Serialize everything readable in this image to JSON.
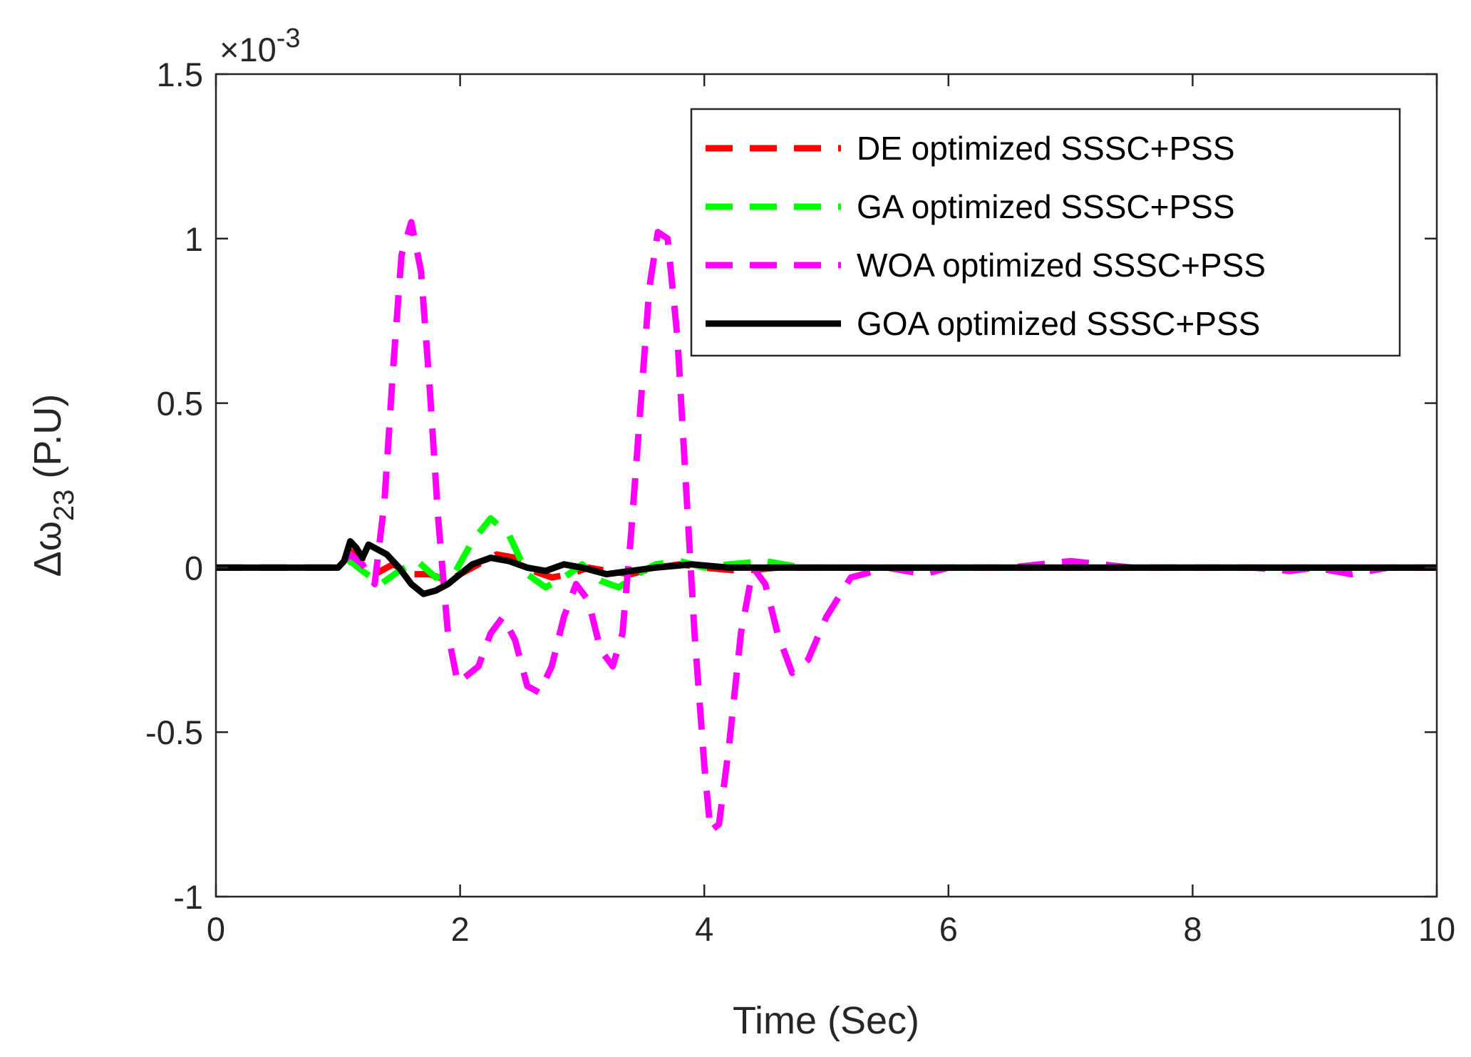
{
  "chart_data": {
    "type": "line",
    "xlabel": "Time (Sec)",
    "ylabel_prefix": "Δω",
    "ylabel_subscript": "23",
    "ylabel_suffix": " (P.U)",
    "exponent_times": "×10",
    "exponent_power": "-3",
    "xlim": [
      0,
      10
    ],
    "ylim": [
      -1,
      1.5
    ],
    "xticks": [
      0,
      2,
      4,
      6,
      8,
      10
    ],
    "yticks": [
      -1,
      -0.5,
      0,
      0.5,
      1,
      1.5
    ],
    "xtick_labels": [
      "0",
      "2",
      "4",
      "6",
      "8",
      "10"
    ],
    "ytick_labels": [
      "-1",
      "-0.5",
      "0",
      "0.5",
      "1",
      "1.5"
    ],
    "grid": false,
    "legend_position": "top-right",
    "series": [
      {
        "name": "DE optimized SSSC+PSS",
        "color": "#ff0000",
        "style": "dashed",
        "points": [
          [
            0,
            0
          ],
          [
            0.5,
            0
          ],
          [
            1.0,
            0
          ],
          [
            1.1,
            0.05
          ],
          [
            1.2,
            0.02
          ],
          [
            1.3,
            -0.02
          ],
          [
            1.45,
            0.01
          ],
          [
            1.6,
            -0.02
          ],
          [
            1.75,
            -0.02
          ],
          [
            1.9,
            -0.04
          ],
          [
            2.0,
            -0.02
          ],
          [
            2.15,
            0.01
          ],
          [
            2.3,
            0.04
          ],
          [
            2.45,
            0.03
          ],
          [
            2.6,
            -0.01
          ],
          [
            2.75,
            -0.03
          ],
          [
            2.9,
            -0.02
          ],
          [
            3.05,
            0.0
          ],
          [
            3.2,
            -0.01
          ],
          [
            3.4,
            -0.02
          ],
          [
            3.6,
            0.0
          ],
          [
            3.8,
            0.01
          ],
          [
            4.0,
            0.0
          ],
          [
            4.3,
            -0.01
          ],
          [
            4.6,
            0.0
          ],
          [
            5.0,
            0.0
          ],
          [
            6.0,
            0.0
          ],
          [
            7.0,
            0.0
          ],
          [
            8.0,
            0.0
          ],
          [
            9.0,
            0.0
          ],
          [
            10.0,
            0.0
          ]
        ]
      },
      {
        "name": "GA optimized SSSC+PSS",
        "color": "#00ff00",
        "style": "dashed",
        "points": [
          [
            0,
            0
          ],
          [
            0.5,
            0
          ],
          [
            1.0,
            0
          ],
          [
            1.1,
            0.02
          ],
          [
            1.2,
            -0.01
          ],
          [
            1.35,
            -0.05
          ],
          [
            1.5,
            -0.01
          ],
          [
            1.65,
            0.02
          ],
          [
            1.8,
            -0.03
          ],
          [
            1.95,
            -0.02
          ],
          [
            2.1,
            0.08
          ],
          [
            2.25,
            0.15
          ],
          [
            2.4,
            0.1
          ],
          [
            2.55,
            -0.02
          ],
          [
            2.7,
            -0.06
          ],
          [
            2.85,
            -0.03
          ],
          [
            3.0,
            0.01
          ],
          [
            3.15,
            -0.04
          ],
          [
            3.3,
            -0.06
          ],
          [
            3.45,
            -0.02
          ],
          [
            3.6,
            0.01
          ],
          [
            3.8,
            0.02
          ],
          [
            4.0,
            0.0
          ],
          [
            4.2,
            0.01
          ],
          [
            4.5,
            0.02
          ],
          [
            4.8,
            0.0
          ],
          [
            5.2,
            0.0
          ],
          [
            6.0,
            0.0
          ],
          [
            7.0,
            0.0
          ],
          [
            8.0,
            0.0
          ],
          [
            9.0,
            0.0
          ],
          [
            10.0,
            0.0
          ]
        ]
      },
      {
        "name": "WOA optimized SSSC+PSS",
        "color": "#ff00ff",
        "style": "dashed",
        "points": [
          [
            0,
            0
          ],
          [
            0.5,
            0
          ],
          [
            0.7,
            0.0
          ],
          [
            1.0,
            0
          ],
          [
            1.1,
            0.04
          ],
          [
            1.2,
            0.01
          ],
          [
            1.3,
            -0.05
          ],
          [
            1.38,
            0.2
          ],
          [
            1.45,
            0.6
          ],
          [
            1.52,
            0.95
          ],
          [
            1.6,
            1.05
          ],
          [
            1.68,
            0.9
          ],
          [
            1.75,
            0.55
          ],
          [
            1.82,
            0.15
          ],
          [
            1.9,
            -0.2
          ],
          [
            1.98,
            -0.35
          ],
          [
            2.05,
            -0.33
          ],
          [
            2.15,
            -0.3
          ],
          [
            2.25,
            -0.2
          ],
          [
            2.35,
            -0.15
          ],
          [
            2.45,
            -0.22
          ],
          [
            2.55,
            -0.36
          ],
          [
            2.65,
            -0.38
          ],
          [
            2.75,
            -0.3
          ],
          [
            2.85,
            -0.15
          ],
          [
            2.95,
            -0.05
          ],
          [
            3.05,
            -0.1
          ],
          [
            3.15,
            -0.25
          ],
          [
            3.25,
            -0.3
          ],
          [
            3.33,
            -0.2
          ],
          [
            3.4,
            0.1
          ],
          [
            3.48,
            0.5
          ],
          [
            3.55,
            0.85
          ],
          [
            3.62,
            1.02
          ],
          [
            3.7,
            1.0
          ],
          [
            3.78,
            0.7
          ],
          [
            3.85,
            0.25
          ],
          [
            3.92,
            -0.2
          ],
          [
            4.0,
            -0.6
          ],
          [
            4.05,
            -0.8
          ],
          [
            4.12,
            -0.78
          ],
          [
            4.2,
            -0.55
          ],
          [
            4.3,
            -0.2
          ],
          [
            4.4,
            0.0
          ],
          [
            4.5,
            -0.05
          ],
          [
            4.6,
            -0.2
          ],
          [
            4.72,
            -0.32
          ],
          [
            4.85,
            -0.28
          ],
          [
            5.0,
            -0.15
          ],
          [
            5.2,
            -0.03
          ],
          [
            5.5,
            0.0
          ],
          [
            5.8,
            -0.02
          ],
          [
            6.0,
            0.0
          ],
          [
            6.5,
            0.0
          ],
          [
            7.0,
            0.02
          ],
          [
            7.5,
            0.0
          ],
          [
            8.0,
            0.0
          ],
          [
            8.5,
            0.0
          ],
          [
            8.8,
            -0.01
          ],
          [
            9.0,
            0.0
          ],
          [
            9.3,
            -0.02
          ],
          [
            9.6,
            0.0
          ],
          [
            10.0,
            0.0
          ]
        ]
      },
      {
        "name": "GOA optimized SSSC+PSS",
        "color": "#000000",
        "style": "solid",
        "points": [
          [
            0,
            0
          ],
          [
            0.3,
            0
          ],
          [
            0.6,
            0.0
          ],
          [
            0.8,
            0
          ],
          [
            1.0,
            0
          ],
          [
            1.05,
            0.02
          ],
          [
            1.1,
            0.08
          ],
          [
            1.15,
            0.06
          ],
          [
            1.2,
            0.03
          ],
          [
            1.25,
            0.07
          ],
          [
            1.3,
            0.06
          ],
          [
            1.35,
            0.05
          ],
          [
            1.4,
            0.04
          ],
          [
            1.5,
            0.0
          ],
          [
            1.6,
            -0.05
          ],
          [
            1.7,
            -0.08
          ],
          [
            1.8,
            -0.07
          ],
          [
            1.9,
            -0.05
          ],
          [
            2.0,
            -0.02
          ],
          [
            2.1,
            0.01
          ],
          [
            2.25,
            0.03
          ],
          [
            2.4,
            0.02
          ],
          [
            2.55,
            0.0
          ],
          [
            2.7,
            -0.01
          ],
          [
            2.85,
            0.01
          ],
          [
            3.0,
            0.0
          ],
          [
            3.2,
            -0.02
          ],
          [
            3.4,
            -0.01
          ],
          [
            3.6,
            0.0
          ],
          [
            3.9,
            0.01
          ],
          [
            4.2,
            0.0
          ],
          [
            4.6,
            0.0
          ],
          [
            5.0,
            0.0
          ],
          [
            6.0,
            0.0
          ],
          [
            7.0,
            0.0
          ],
          [
            8.0,
            0.0
          ],
          [
            8.5,
            0.0
          ],
          [
            9.0,
            0.0
          ],
          [
            9.5,
            0.0
          ],
          [
            10.0,
            0.0
          ]
        ]
      }
    ]
  }
}
